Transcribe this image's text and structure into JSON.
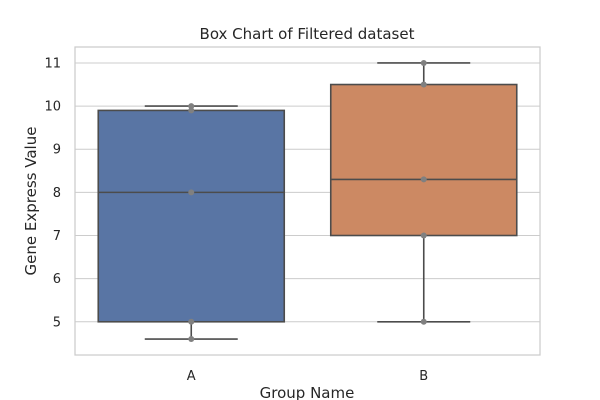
{
  "chart_data": {
    "type": "box",
    "title": "Box Chart of Filtered dataset",
    "xlabel": "Group Name",
    "ylabel": "Gene Express Value",
    "categories": [
      "A",
      "B"
    ],
    "ylim": [
      4.23,
      11.37
    ],
    "yticks": [
      5,
      6,
      7,
      8,
      9,
      10,
      11
    ],
    "grid": true,
    "legend": "none",
    "colors": {
      "A": "#5975a4",
      "B": "#cc8963",
      "line": "#4c4c4c",
      "points": "#808080",
      "grid": "#cccccc",
      "frame": "#cccccc"
    },
    "boxes": [
      {
        "category": "A",
        "whisker_low": 4.6,
        "q1": 5.0,
        "median": 8.0,
        "q3": 9.9,
        "whisker_high": 10.0,
        "points": [
          4.6,
          5.0,
          8.0,
          9.9,
          10.0
        ]
      },
      {
        "category": "B",
        "whisker_low": 5.0,
        "q1": 7.0,
        "median": 8.3,
        "q3": 10.5,
        "whisker_high": 11.0,
        "points": [
          5.0,
          7.0,
          8.3,
          10.5,
          11.0
        ]
      }
    ]
  }
}
